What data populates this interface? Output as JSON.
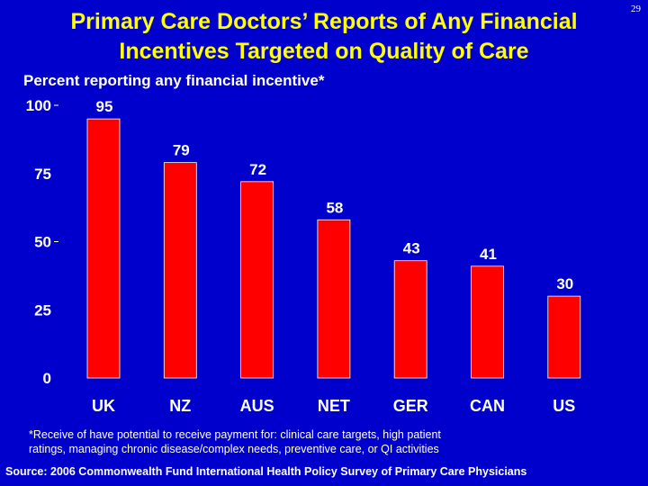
{
  "title_line1": "Primary Care Doctors’ Reports of Any Financial",
  "title_line2": "Incentives Targeted on Quality of Care",
  "page_number": "29",
  "footnote_line1": "*Receive of have potential to receive payment for: clinical care  targets, high patient",
  "footnote_line2": "ratings, managing chronic disease/complex needs, preventive care, or QI activities",
  "source": "Source: 2006 Commonwealth Fund International Health Policy Survey of Primary Care Physicians",
  "colors": {
    "background": "#0000cc",
    "title": "#ffff00",
    "bar": "#ff0000",
    "text": "#ffffff"
  },
  "chart_data": {
    "type": "bar",
    "title": "Primary Care Doctors’ Reports of Any Financial Incentives Targeted on Quality of Care",
    "ylabel": "Percent reporting any financial incentive*",
    "xlabel": "",
    "categories": [
      "UK",
      "NZ",
      "AUS",
      "NET",
      "GER",
      "CAN",
      "US"
    ],
    "values": [
      95,
      79,
      72,
      58,
      43,
      41,
      30
    ],
    "ylim": [
      0,
      100
    ],
    "yticks": [
      0,
      25,
      50,
      75,
      100
    ],
    "grid": false,
    "legend": "none"
  }
}
